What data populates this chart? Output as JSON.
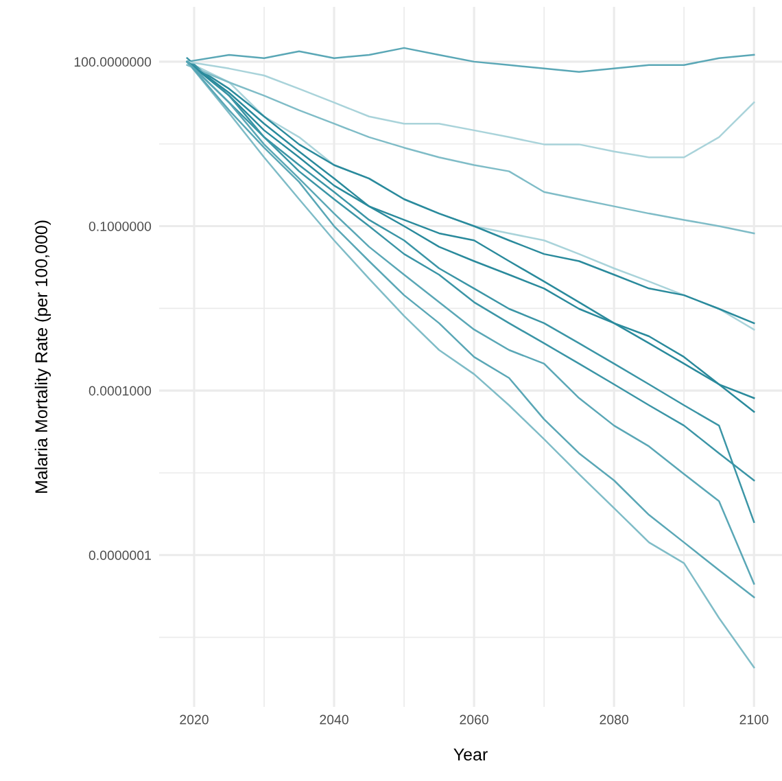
{
  "chart_data": {
    "type": "line",
    "xlabel": "Year",
    "ylabel": "Malaria Mortality Rate (per 100,000)",
    "log": "y",
    "grid": true,
    "marker": "none",
    "line_style": "solid",
    "x": [
      2019,
      2025,
      2030,
      2035,
      2040,
      2045,
      2050,
      2055,
      2060,
      2065,
      2070,
      2075,
      2080,
      2085,
      2090,
      2095,
      2100
    ],
    "xlim": [
      2015,
      2104
    ],
    "xticks": [
      2020,
      {
        "value": 2030,
        "label": null
      },
      2040,
      {
        "value": 2050,
        "label": null
      },
      2060,
      {
        "value": 2070,
        "label": null
      },
      2080,
      {
        "value": 2090,
        "label": null
      },
      2100
    ],
    "ylim": [
      1.7e-10,
      1000
    ],
    "yticks": [
      {
        "value": 100,
        "label": "100.0000000"
      },
      {
        "value": 3.16,
        "label": null
      },
      {
        "value": 0.1,
        "label": "0.1000000"
      },
      {
        "value": 0.00316,
        "label": null
      },
      {
        "value": 0.0001,
        "label": "0.0001000"
      },
      {
        "value": 3.16e-06,
        "label": null
      },
      {
        "value": 1e-07,
        "label": "0.0000001"
      },
      {
        "value": 3.16e-09,
        "label": null
      }
    ],
    "series": [
      {
        "color": "#5aa7b6",
        "values": [
          100,
          133,
          116,
          155,
          116,
          133,
          178,
          133,
          100,
          87,
          75,
          65,
          75,
          87,
          87,
          116,
          133
        ]
      },
      {
        "color": "#7fbcc7",
        "values": [
          100,
          11.5,
          1.8,
          0.31,
          0.055,
          0.011,
          0.0023,
          0.00055,
          0.0002,
          5.4e-05,
          1.3e-05,
          3e-06,
          7.2e-07,
          1.7e-07,
          7.1e-08,
          7.1e-09,
          8.9e-10
        ]
      },
      {
        "color": "#5aa7b6",
        "values": [
          100,
          13,
          2.7,
          0.64,
          0.1,
          0.023,
          0.0055,
          0.0017,
          0.00041,
          0.00017,
          3e-05,
          7.2e-06,
          2.3e-06,
          5.4e-07,
          1.7e-07,
          5.3e-08,
          1.7e-08
        ]
      },
      {
        "color": "#a9d3da",
        "values": [
          100,
          42,
          10,
          4.2,
          1.3,
          0.74,
          0.31,
          0.17,
          0.1,
          0.074,
          0.055,
          0.031,
          0.017,
          0.0098,
          0.0055,
          0.0031,
          0.0013
        ]
      },
      {
        "color": "#2a8a9c",
        "values": [
          100,
          32,
          10,
          3.1,
          1.3,
          0.74,
          0.31,
          0.17,
          0.1,
          0.055,
          0.031,
          0.023,
          0.013,
          0.0073,
          0.0055,
          0.0031,
          0.0017
        ]
      },
      {
        "color": "#2a8a9c",
        "values": [
          100,
          24,
          5.6,
          1.8,
          0.55,
          0.23,
          0.1,
          0.042,
          0.023,
          0.013,
          0.0073,
          0.0031,
          0.0017,
          0.00098,
          0.00041,
          0.00013,
          4.1e-05
        ]
      },
      {
        "color": "#3b95a6",
        "values": [
          116,
          24,
          4.2,
          1.0,
          0.31,
          0.1,
          0.031,
          0.013,
          0.0041,
          0.0017,
          0.00073,
          0.00031,
          0.00013,
          5.4e-05,
          2.3e-05,
          7.2e-06,
          2.3e-06
        ]
      },
      {
        "color": "#7fbcc7",
        "values": [
          87,
          42,
          24,
          13,
          7.4,
          4.2,
          2.7,
          1.8,
          1.3,
          1.0,
          0.42,
          0.31,
          0.23,
          0.17,
          0.13,
          0.1,
          0.074
        ]
      },
      {
        "color": "#a9d3da",
        "values": [
          100,
          75,
          56,
          32,
          18,
          10,
          7.4,
          7.4,
          5.6,
          4.2,
          3.1,
          3.1,
          2.3,
          1.8,
          1.8,
          4.2,
          18
        ]
      },
      {
        "color": "#2a8a9c",
        "values": [
          100,
          27,
          7.4,
          2.3,
          0.74,
          0.23,
          0.13,
          0.074,
          0.055,
          0.023,
          0.0098,
          0.0041,
          0.0017,
          0.00073,
          0.00031,
          0.00013,
          7.3e-05
        ]
      },
      {
        "color": "#3b95a6",
        "values": [
          100,
          18,
          4.2,
          1.3,
          0.42,
          0.13,
          0.055,
          0.017,
          0.0073,
          0.0031,
          0.0017,
          0.00073,
          0.00031,
          0.00013,
          5.4e-05,
          2.3e-05,
          4e-07
        ]
      },
      {
        "color": "#5aa7b6",
        "values": [
          100,
          18,
          3.1,
          0.74,
          0.17,
          0.042,
          0.013,
          0.0041,
          0.0013,
          0.00055,
          0.00031,
          7.3e-05,
          2.3e-05,
          9.6e-06,
          3e-06,
          9.6e-07,
          3e-08
        ]
      }
    ]
  }
}
